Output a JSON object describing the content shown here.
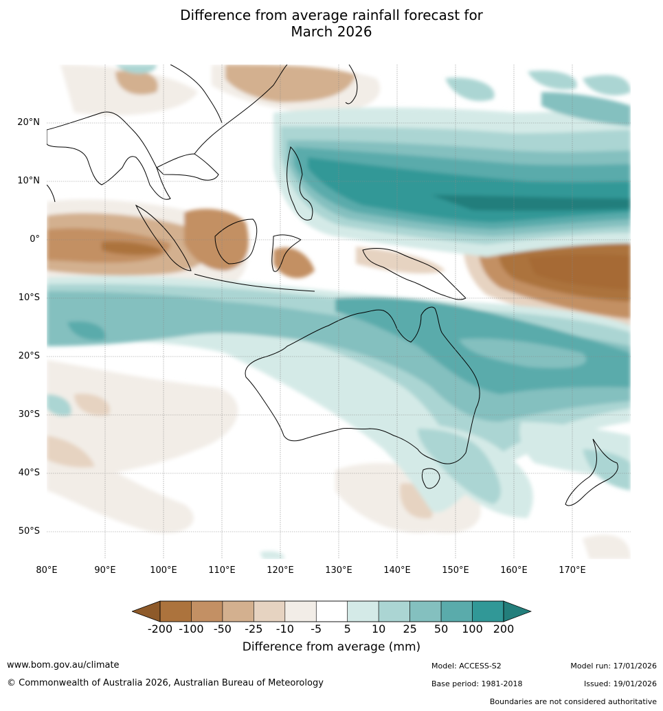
{
  "title_line1": "Difference from average rainfall forecast for",
  "title_line2": "March 2026",
  "lat_labels": [
    "20°N",
    "10°N",
    "0°",
    "10°S",
    "20°S",
    "30°S",
    "40°S",
    "50°S"
  ],
  "lon_labels": [
    "80°E",
    "90°E",
    "100°E",
    "110°E",
    "120°E",
    "130°E",
    "140°E",
    "150°E",
    "160°E",
    "170°E"
  ],
  "colorbar": {
    "ticks": [
      "-200",
      "-100",
      "-50",
      "-25",
      "-10",
      "-5",
      "5",
      "10",
      "25",
      "50",
      "100",
      "200"
    ],
    "colors": {
      "below_min": "#8e5a2a",
      "b_200_100": "#ac733d",
      "b_100_50": "#c39064",
      "b_50_25": "#d3b08f",
      "b_25_10": "#e6d3c1",
      "b_10_5": "#f2ede7",
      "neutral": "#ffffff",
      "b_5_10": "#d4eae7",
      "b_10_25": "#abd5d3",
      "b_25_50": "#84c0bf",
      "b_50_100": "#5aabab",
      "b_100_200": "#319897",
      "above_max": "#237e7b"
    },
    "label": "Difference from average (mm)"
  },
  "footer": {
    "website": "www.bom.gov.au/climate",
    "copyright": "© Commonwealth of Australia 2026, Australian Bureau of Meteorology",
    "model": "Model: ACCESS-S2",
    "base_period": "Base period: 1981-2018",
    "model_run": "Model run: 17/01/2026",
    "issued": "Issued: 19/01/2026",
    "disclaimer": "Boundaries are not considered authoritative"
  }
}
